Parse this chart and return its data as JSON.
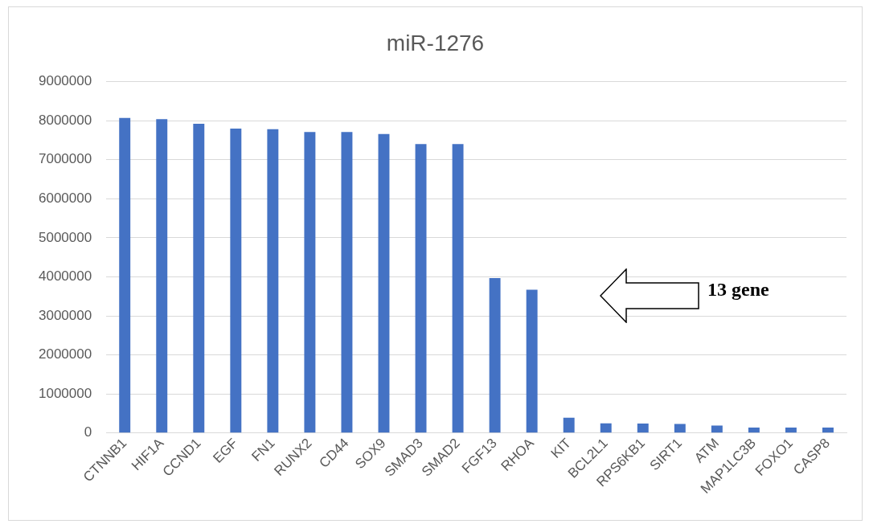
{
  "chart_data": {
    "type": "bar",
    "title": "miR-1276",
    "categories": [
      "CTNNB1",
      "HIF1A",
      "CCND1",
      "EGF",
      "FN1",
      "RUNX2",
      "CD44",
      "SOX9",
      "SMAD3",
      "SMAD2",
      "FGF13",
      "RHOA",
      "KIT",
      "BCL2L1",
      "RPS6KB1",
      "SIRT1",
      "ATM",
      "MAP1LC3B",
      "FOXO1",
      "CASP8"
    ],
    "values": [
      8070000,
      8040000,
      7920000,
      7800000,
      7780000,
      7710000,
      7710000,
      7660000,
      7400000,
      7400000,
      3970000,
      3670000,
      390000,
      250000,
      240000,
      230000,
      190000,
      140000,
      140000,
      140000
    ],
    "color": "#4472c4",
    "ylim": [
      0,
      9000000
    ],
    "yticks": [
      0,
      1000000,
      2000000,
      3000000,
      4000000,
      5000000,
      6000000,
      7000000,
      8000000,
      9000000
    ],
    "grid": "y",
    "legend": false,
    "annotations": [
      "13 gene"
    ]
  }
}
